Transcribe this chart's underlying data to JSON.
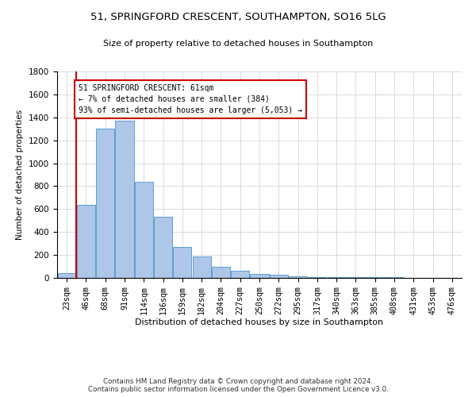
{
  "title_line1": "51, SPRINGFORD CRESCENT, SOUTHAMPTON, SO16 5LG",
  "title_line2": "Size of property relative to detached houses in Southampton",
  "xlabel": "Distribution of detached houses by size in Southampton",
  "ylabel": "Number of detached properties",
  "categories": [
    "23sqm",
    "46sqm",
    "68sqm",
    "91sqm",
    "114sqm",
    "136sqm",
    "159sqm",
    "182sqm",
    "204sqm",
    "227sqm",
    "250sqm",
    "272sqm",
    "295sqm",
    "317sqm",
    "340sqm",
    "363sqm",
    "385sqm",
    "408sqm",
    "431sqm",
    "453sqm",
    "476sqm"
  ],
  "bar_values": [
    40,
    640,
    1300,
    1370,
    840,
    530,
    270,
    185,
    100,
    60,
    35,
    25,
    15,
    10,
    8,
    7,
    5,
    4,
    3,
    3,
    2
  ],
  "bar_color": "#aec6e8",
  "bar_edge_color": "#5a9fd4",
  "vline_color": "#cc0000",
  "annotation_text": "51 SPRINGFORD CRESCENT: 61sqm\n← 7% of detached houses are smaller (384)\n93% of semi-detached houses are larger (5,053) →",
  "ylim": [
    0,
    1800
  ],
  "yticks": [
    0,
    200,
    400,
    600,
    800,
    1000,
    1200,
    1400,
    1600,
    1800
  ],
  "footer": "Contains HM Land Registry data © Crown copyright and database right 2024.\nContains public sector information licensed under the Open Government Licence v3.0.",
  "grid_color": "#cccccc"
}
